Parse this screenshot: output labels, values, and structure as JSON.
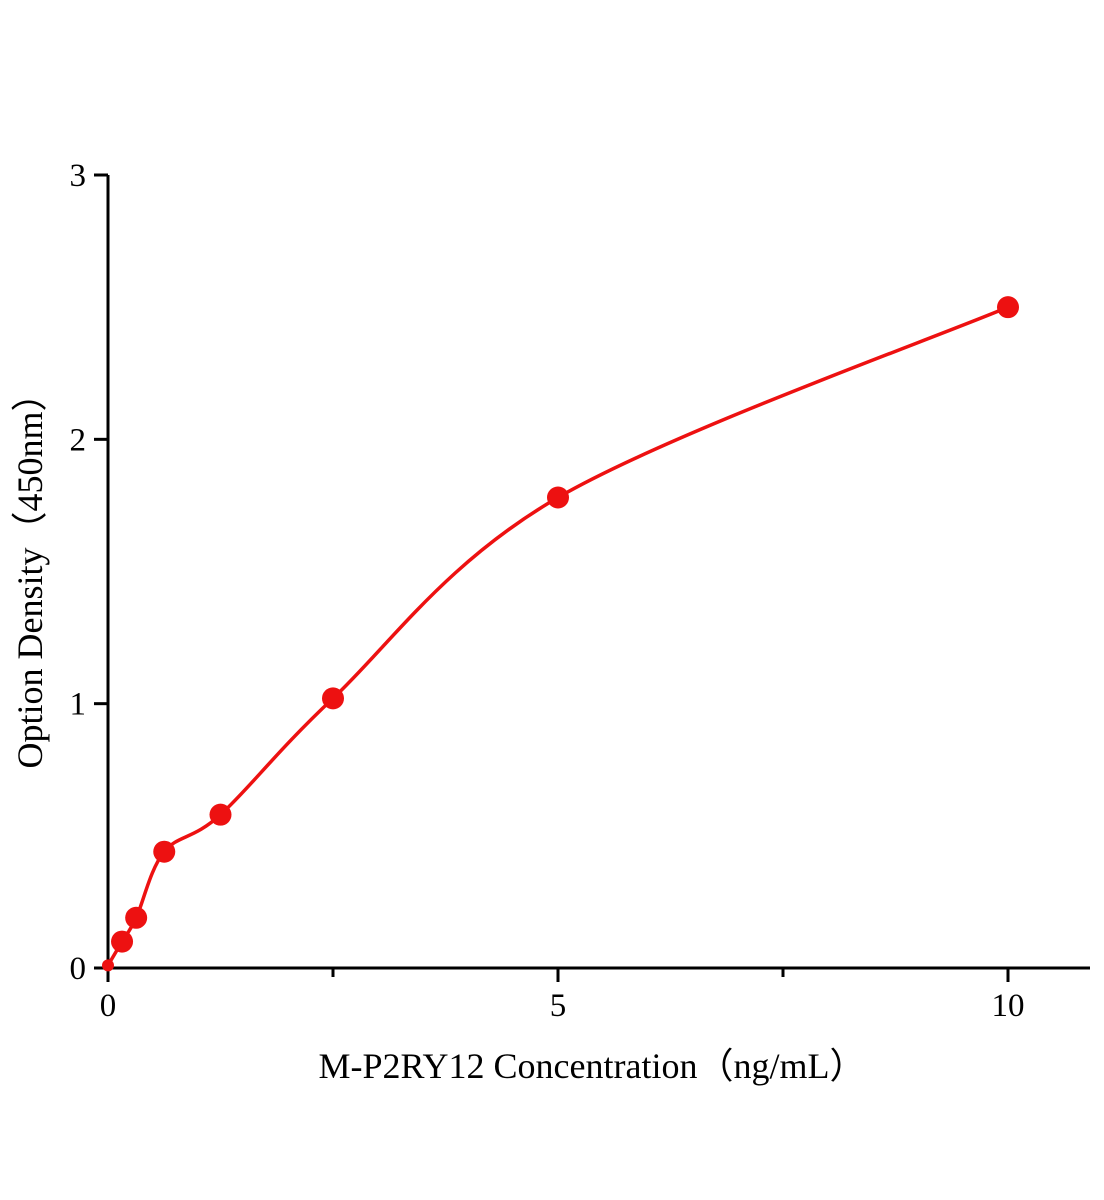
{
  "chart_data": {
    "type": "scatter",
    "title": "",
    "xlabel": "M-P2RY12 Concentration（ng/mL）",
    "ylabel": "Option Density（450nm）",
    "x": [
      0,
      0.156,
      0.313,
      0.625,
      1.25,
      2.5,
      5,
      10
    ],
    "y": [
      0.01,
      0.1,
      0.19,
      0.44,
      0.58,
      1.02,
      1.78,
      2.5
    ],
    "xlim": [
      0,
      10.9
    ],
    "ylim": [
      0,
      3
    ],
    "x_ticks": [
      0,
      5,
      10
    ],
    "x_tick_labels": [
      "0",
      "5",
      "10"
    ],
    "x_minor_ticks": [
      2.5,
      7.5
    ],
    "y_ticks": [
      0,
      1,
      2,
      3
    ],
    "y_tick_labels": [
      "0",
      "1",
      "2",
      "3"
    ],
    "grid": "off",
    "legend": "none",
    "line_color": "#ed1111",
    "point_color": "#ed1111",
    "axis_color": "#000000"
  }
}
